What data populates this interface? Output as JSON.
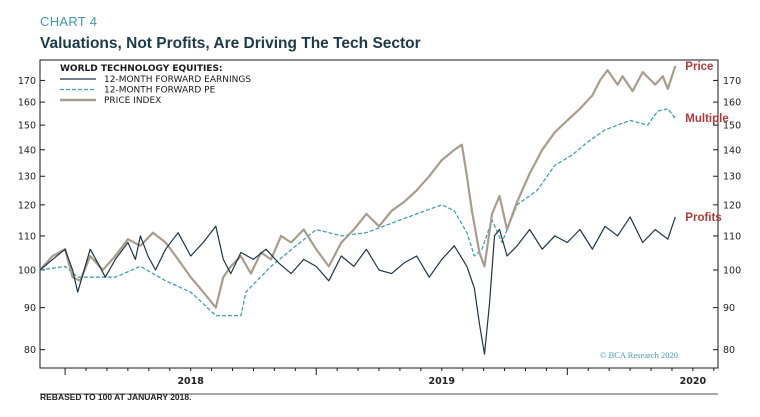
{
  "header": {
    "label": "CHART 4",
    "title": "Valuations, Not Profits, Are Driving The Tech Sector"
  },
  "footnote": "REBASED TO 100 AT JANUARY 2018.",
  "source": "© BCA Research 2020",
  "colors": {
    "earnings": "#1e3544",
    "pe": "#3fa2b1",
    "price": "#a89c8c",
    "price_label": "#b03a3a",
    "multiple_label": "#b03a3a",
    "profits_label": "#b03a3a"
  },
  "chart_data": {
    "type": "line",
    "title": "Valuations, Not Profits, Are Driving The Tech Sector",
    "legend_title": "WORLD TECHNOLOGY EQUITIES:",
    "y_scale": "log",
    "ylim": [
      76,
      180
    ],
    "xlim": [
      2017.9,
      2020.6
    ],
    "y_ticks": [
      80,
      90,
      100,
      110,
      120,
      130,
      140,
      150,
      160,
      170
    ],
    "x_ticks": [
      {
        "x": 2018.0,
        "label": "2018"
      },
      {
        "x": 2019.0,
        "label": "2019"
      },
      {
        "x": 2020.0,
        "label": "2020"
      }
    ],
    "annotations": [
      {
        "text": "Price",
        "series": "price"
      },
      {
        "text": "Multiple",
        "series": "pe"
      },
      {
        "text": "Profits",
        "series": "earnings"
      }
    ],
    "series": [
      {
        "name": "12-MONTH FORWARD EARNINGS",
        "key": "earnings",
        "style": "solid",
        "points": [
          [
            2017.9,
            100
          ],
          [
            2017.95,
            103
          ],
          [
            2018.0,
            106
          ],
          [
            2018.03,
            100
          ],
          [
            2018.05,
            94
          ],
          [
            2018.08,
            101
          ],
          [
            2018.1,
            106
          ],
          [
            2018.13,
            102
          ],
          [
            2018.16,
            98
          ],
          [
            2018.2,
            103
          ],
          [
            2018.25,
            108
          ],
          [
            2018.28,
            103
          ],
          [
            2018.3,
            110
          ],
          [
            2018.33,
            104
          ],
          [
            2018.36,
            100
          ],
          [
            2018.4,
            106
          ],
          [
            2018.45,
            111
          ],
          [
            2018.5,
            104
          ],
          [
            2018.55,
            108
          ],
          [
            2018.6,
            113
          ],
          [
            2018.63,
            103
          ],
          [
            2018.66,
            99
          ],
          [
            2018.7,
            105
          ],
          [
            2018.75,
            103
          ],
          [
            2018.8,
            106
          ],
          [
            2018.85,
            102
          ],
          [
            2018.9,
            99
          ],
          [
            2018.95,
            103
          ],
          [
            2019.0,
            101
          ],
          [
            2019.05,
            97
          ],
          [
            2019.1,
            104
          ],
          [
            2019.15,
            101
          ],
          [
            2019.2,
            106
          ],
          [
            2019.25,
            100
          ],
          [
            2019.3,
            99
          ],
          [
            2019.35,
            102
          ],
          [
            2019.4,
            104
          ],
          [
            2019.45,
            98
          ],
          [
            2019.5,
            103
          ],
          [
            2019.55,
            107
          ],
          [
            2019.6,
            101
          ],
          [
            2019.63,
            95
          ],
          [
            2019.65,
            86
          ],
          [
            2019.67,
            79
          ],
          [
            2019.69,
            91
          ],
          [
            2019.71,
            110
          ],
          [
            2019.73,
            112
          ],
          [
            2019.76,
            104
          ],
          [
            2019.8,
            107
          ],
          [
            2019.85,
            112
          ],
          [
            2019.9,
            106
          ],
          [
            2019.95,
            110
          ],
          [
            2020.0,
            108
          ],
          [
            2020.05,
            112
          ],
          [
            2020.1,
            106
          ],
          [
            2020.15,
            113
          ],
          [
            2020.2,
            110
          ],
          [
            2020.25,
            116
          ],
          [
            2020.3,
            108
          ],
          [
            2020.35,
            112
          ],
          [
            2020.4,
            109
          ],
          [
            2020.43,
            116
          ]
        ]
      },
      {
        "name": "12-MONTH FORWARD PE",
        "key": "pe",
        "style": "dashed",
        "points": [
          [
            2017.9,
            100
          ],
          [
            2018.0,
            101
          ],
          [
            2018.05,
            98
          ],
          [
            2018.2,
            98
          ],
          [
            2018.3,
            101
          ],
          [
            2018.4,
            97
          ],
          [
            2018.5,
            94
          ],
          [
            2018.55,
            91
          ],
          [
            2018.6,
            88
          ],
          [
            2018.7,
            88
          ],
          [
            2018.72,
            94
          ],
          [
            2018.82,
            101
          ],
          [
            2018.92,
            107
          ],
          [
            2019.0,
            112
          ],
          [
            2019.1,
            110
          ],
          [
            2019.2,
            111
          ],
          [
            2019.3,
            114
          ],
          [
            2019.4,
            117
          ],
          [
            2019.5,
            120
          ],
          [
            2019.55,
            118
          ],
          [
            2019.6,
            111
          ],
          [
            2019.63,
            104
          ],
          [
            2019.66,
            106
          ],
          [
            2019.7,
            115
          ],
          [
            2019.74,
            108
          ],
          [
            2019.8,
            120
          ],
          [
            2019.88,
            125
          ],
          [
            2019.95,
            134
          ],
          [
            2020.02,
            138
          ],
          [
            2020.08,
            143
          ],
          [
            2020.15,
            148
          ],
          [
            2020.25,
            152
          ],
          [
            2020.32,
            150
          ],
          [
            2020.36,
            156
          ],
          [
            2020.4,
            157
          ],
          [
            2020.43,
            153
          ]
        ]
      },
      {
        "name": "PRICE INDEX",
        "key": "price",
        "style": "solid",
        "points": [
          [
            2017.9,
            100
          ],
          [
            2017.95,
            104
          ],
          [
            2018.0,
            106
          ],
          [
            2018.03,
            98
          ],
          [
            2018.06,
            97
          ],
          [
            2018.1,
            104
          ],
          [
            2018.15,
            100
          ],
          [
            2018.2,
            104
          ],
          [
            2018.25,
            109
          ],
          [
            2018.3,
            107
          ],
          [
            2018.35,
            111
          ],
          [
            2018.4,
            108
          ],
          [
            2018.45,
            103
          ],
          [
            2018.5,
            98
          ],
          [
            2018.55,
            94
          ],
          [
            2018.6,
            90
          ],
          [
            2018.63,
            98
          ],
          [
            2018.66,
            101
          ],
          [
            2018.7,
            104
          ],
          [
            2018.74,
            99
          ],
          [
            2018.78,
            105
          ],
          [
            2018.82,
            103
          ],
          [
            2018.86,
            110
          ],
          [
            2018.9,
            108
          ],
          [
            2018.95,
            112
          ],
          [
            2019.0,
            106
          ],
          [
            2019.05,
            101
          ],
          [
            2019.1,
            108
          ],
          [
            2019.15,
            112
          ],
          [
            2019.2,
            117
          ],
          [
            2019.25,
            113
          ],
          [
            2019.3,
            118
          ],
          [
            2019.35,
            121
          ],
          [
            2019.4,
            125
          ],
          [
            2019.45,
            130
          ],
          [
            2019.5,
            136
          ],
          [
            2019.55,
            140
          ],
          [
            2019.58,
            142
          ],
          [
            2019.6,
            130
          ],
          [
            2019.62,
            118
          ],
          [
            2019.65,
            105
          ],
          [
            2019.67,
            101
          ],
          [
            2019.7,
            117
          ],
          [
            2019.73,
            123
          ],
          [
            2019.76,
            112
          ],
          [
            2019.8,
            121
          ],
          [
            2019.85,
            131
          ],
          [
            2019.9,
            140
          ],
          [
            2019.95,
            147
          ],
          [
            2020.0,
            152
          ],
          [
            2020.05,
            157
          ],
          [
            2020.1,
            163
          ],
          [
            2020.13,
            170
          ],
          [
            2020.16,
            175
          ],
          [
            2020.2,
            168
          ],
          [
            2020.22,
            172
          ],
          [
            2020.26,
            165
          ],
          [
            2020.3,
            174
          ],
          [
            2020.35,
            168
          ],
          [
            2020.38,
            172
          ],
          [
            2020.4,
            166
          ],
          [
            2020.43,
            177
          ]
        ]
      }
    ]
  }
}
